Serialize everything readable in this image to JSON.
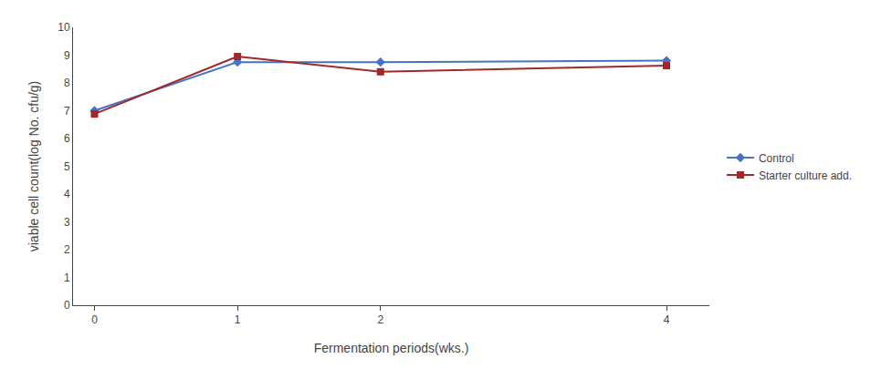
{
  "chart_data": {
    "type": "line",
    "x": [
      0,
      1,
      2,
      4
    ],
    "series": [
      {
        "name": "Control",
        "color": "#4472C4",
        "marker": "diamond",
        "values": [
          7.0,
          8.75,
          8.75,
          8.8
        ]
      },
      {
        "name": "Starter culture add.",
        "color": "#A0282A",
        "marker": "square",
        "values": [
          6.88,
          8.95,
          8.4,
          8.62
        ]
      }
    ],
    "xlabel": "Fermentation periods(wks.)",
    "ylabel": "viable cell count(log No. cfu/g)",
    "xlim": [
      -0.15,
      4.3
    ],
    "ylim": [
      0,
      10
    ],
    "xticks": [
      0,
      1,
      2,
      4
    ],
    "yticks": [
      0,
      1,
      2,
      3,
      4,
      5,
      6,
      7,
      8,
      9,
      10
    ],
    "grid": false,
    "legend": "right"
  }
}
